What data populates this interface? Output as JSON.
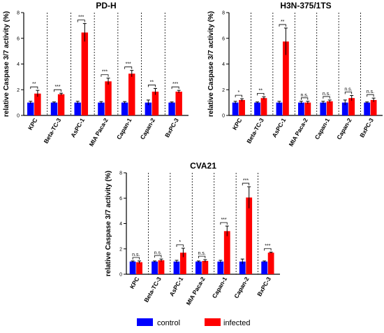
{
  "chart_data": [
    {
      "type": "bar",
      "title": "PD-H",
      "ylabel": "relative Caspase 3/7 activity (%)",
      "ylim": [
        0,
        8
      ],
      "yticks": [
        0,
        2,
        4,
        6,
        8
      ],
      "categories": [
        "KPC",
        "Beta-TC-3",
        "AsPC-1",
        "MIA Paca-2",
        "Capan-1",
        "Capan-2",
        "BxPC-3"
      ],
      "series": [
        {
          "name": "control",
          "color": "#0000ff",
          "values": [
            1.0,
            1.0,
            1.0,
            1.0,
            1.0,
            1.0,
            1.0
          ],
          "errors": [
            0.1,
            0.05,
            0.1,
            0.08,
            0.08,
            0.2,
            0.05
          ]
        },
        {
          "name": "infected",
          "color": "#ff0000",
          "values": [
            1.7,
            1.65,
            6.45,
            2.65,
            3.25,
            1.85,
            1.85
          ],
          "errors": [
            0.25,
            0.08,
            0.7,
            0.25,
            0.25,
            0.25,
            0.1
          ]
        }
      ],
      "significance": [
        "**",
        "***",
        "***",
        "***",
        "***",
        "**",
        "***"
      ]
    },
    {
      "type": "bar",
      "title": "H3N-375/1TS",
      "ylabel": "relative Caspase 3/7 activity (%)",
      "ylim": [
        0,
        8
      ],
      "yticks": [
        0,
        2,
        4,
        6,
        8
      ],
      "categories": [
        "KPC",
        "Beta-TC-3",
        "AsPC-1",
        "MIA Paca-2",
        "Capan-1",
        "Capan-2",
        "BxPC-3"
      ],
      "series": [
        {
          "name": "control",
          "color": "#0000ff",
          "values": [
            1.0,
            1.0,
            1.0,
            1.0,
            1.0,
            1.0,
            1.0
          ],
          "errors": [
            0.1,
            0.05,
            0.1,
            0.1,
            0.1,
            0.2,
            0.05
          ]
        },
        {
          "name": "infected",
          "color": "#ff0000",
          "values": [
            1.2,
            1.35,
            5.75,
            1.0,
            1.1,
            1.35,
            1.2
          ],
          "errors": [
            0.1,
            0.1,
            1.05,
            0.1,
            0.1,
            0.2,
            0.15
          ]
        }
      ],
      "significance": [
        "*",
        "**",
        "**",
        "n.s.",
        "n.s.",
        "n.s.",
        "n.s."
      ]
    },
    {
      "type": "bar",
      "title": "CVA21",
      "ylabel": "relative Caspase 3/7 activity (%)",
      "ylim": [
        0,
        8
      ],
      "yticks": [
        0,
        2,
        4,
        6,
        8
      ],
      "categories": [
        "KPC",
        "Beta-TC-3",
        "AsPC-1",
        "MIA Paca-2",
        "Capan-1",
        "Capan-2",
        "BxPC-3"
      ],
      "series": [
        {
          "name": "control",
          "color": "#0000ff",
          "values": [
            1.0,
            1.0,
            1.0,
            1.0,
            1.0,
            1.0,
            1.0
          ],
          "errors": [
            0.05,
            0.05,
            0.1,
            0.05,
            0.1,
            0.2,
            0.05
          ]
        },
        {
          "name": "infected",
          "color": "#ff0000",
          "values": [
            0.95,
            1.1,
            1.7,
            1.05,
            3.4,
            6.05,
            1.7
          ],
          "errors": [
            0.1,
            0.1,
            0.35,
            0.1,
            0.4,
            0.85,
            0.05
          ]
        }
      ],
      "significance": [
        "n.s.",
        "n.s.",
        "*",
        "n.s.",
        "***",
        "***",
        "***"
      ]
    }
  ],
  "legend": [
    {
      "label": "control",
      "color": "#0000ff"
    },
    {
      "label": "infected",
      "color": "#ff0000"
    }
  ]
}
